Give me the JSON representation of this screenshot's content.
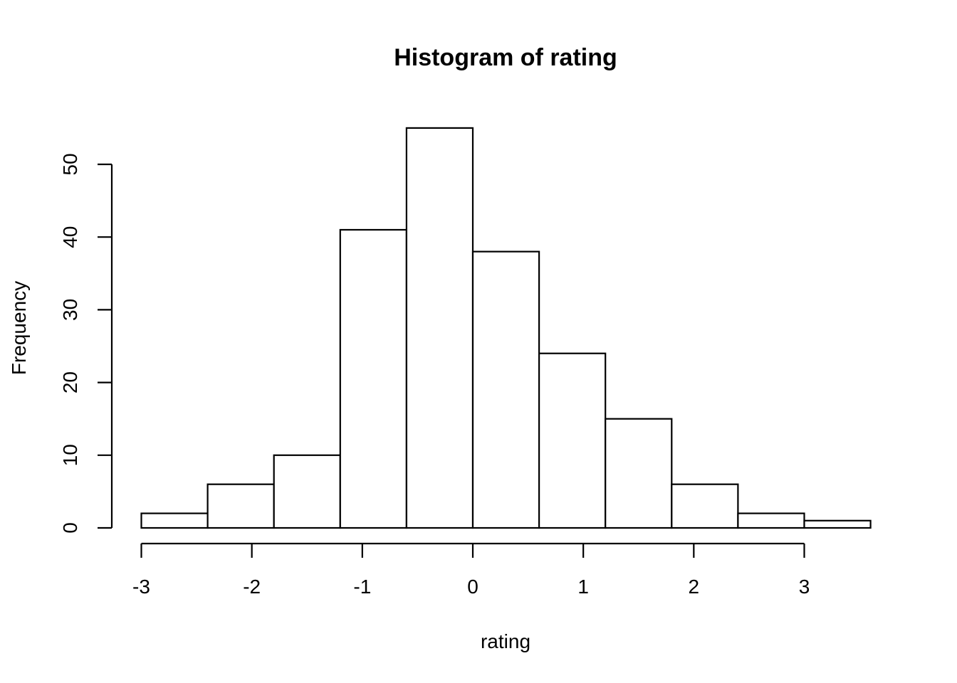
{
  "chart_data": {
    "type": "bar",
    "title": "Histogram of rating",
    "xlabel": "rating",
    "ylabel": "Frequency",
    "bin_edges": [
      -3.0,
      -2.4,
      -1.8,
      -1.2,
      -0.6,
      0.0,
      0.6,
      1.2,
      1.8,
      2.4,
      3.0,
      3.6
    ],
    "values": [
      2,
      6,
      10,
      41,
      55,
      38,
      24,
      15,
      6,
      2,
      1
    ],
    "xlim": [
      -3.0,
      3.6
    ],
    "ylim": [
      0,
      55
    ],
    "x_ticks": [
      -3,
      -2,
      -1,
      0,
      1,
      2,
      3
    ],
    "x_tick_labels": [
      "-3",
      "-2",
      "-1",
      "0",
      "1",
      "2",
      "3"
    ],
    "y_ticks": [
      0,
      10,
      20,
      30,
      40,
      50
    ],
    "y_tick_labels": [
      "0",
      "10",
      "20",
      "30",
      "40",
      "50"
    ],
    "grid": false,
    "legend": "none",
    "colors": {
      "bar_fill": "#ffffff",
      "bar_stroke": "#000000",
      "text": "#000000"
    }
  }
}
